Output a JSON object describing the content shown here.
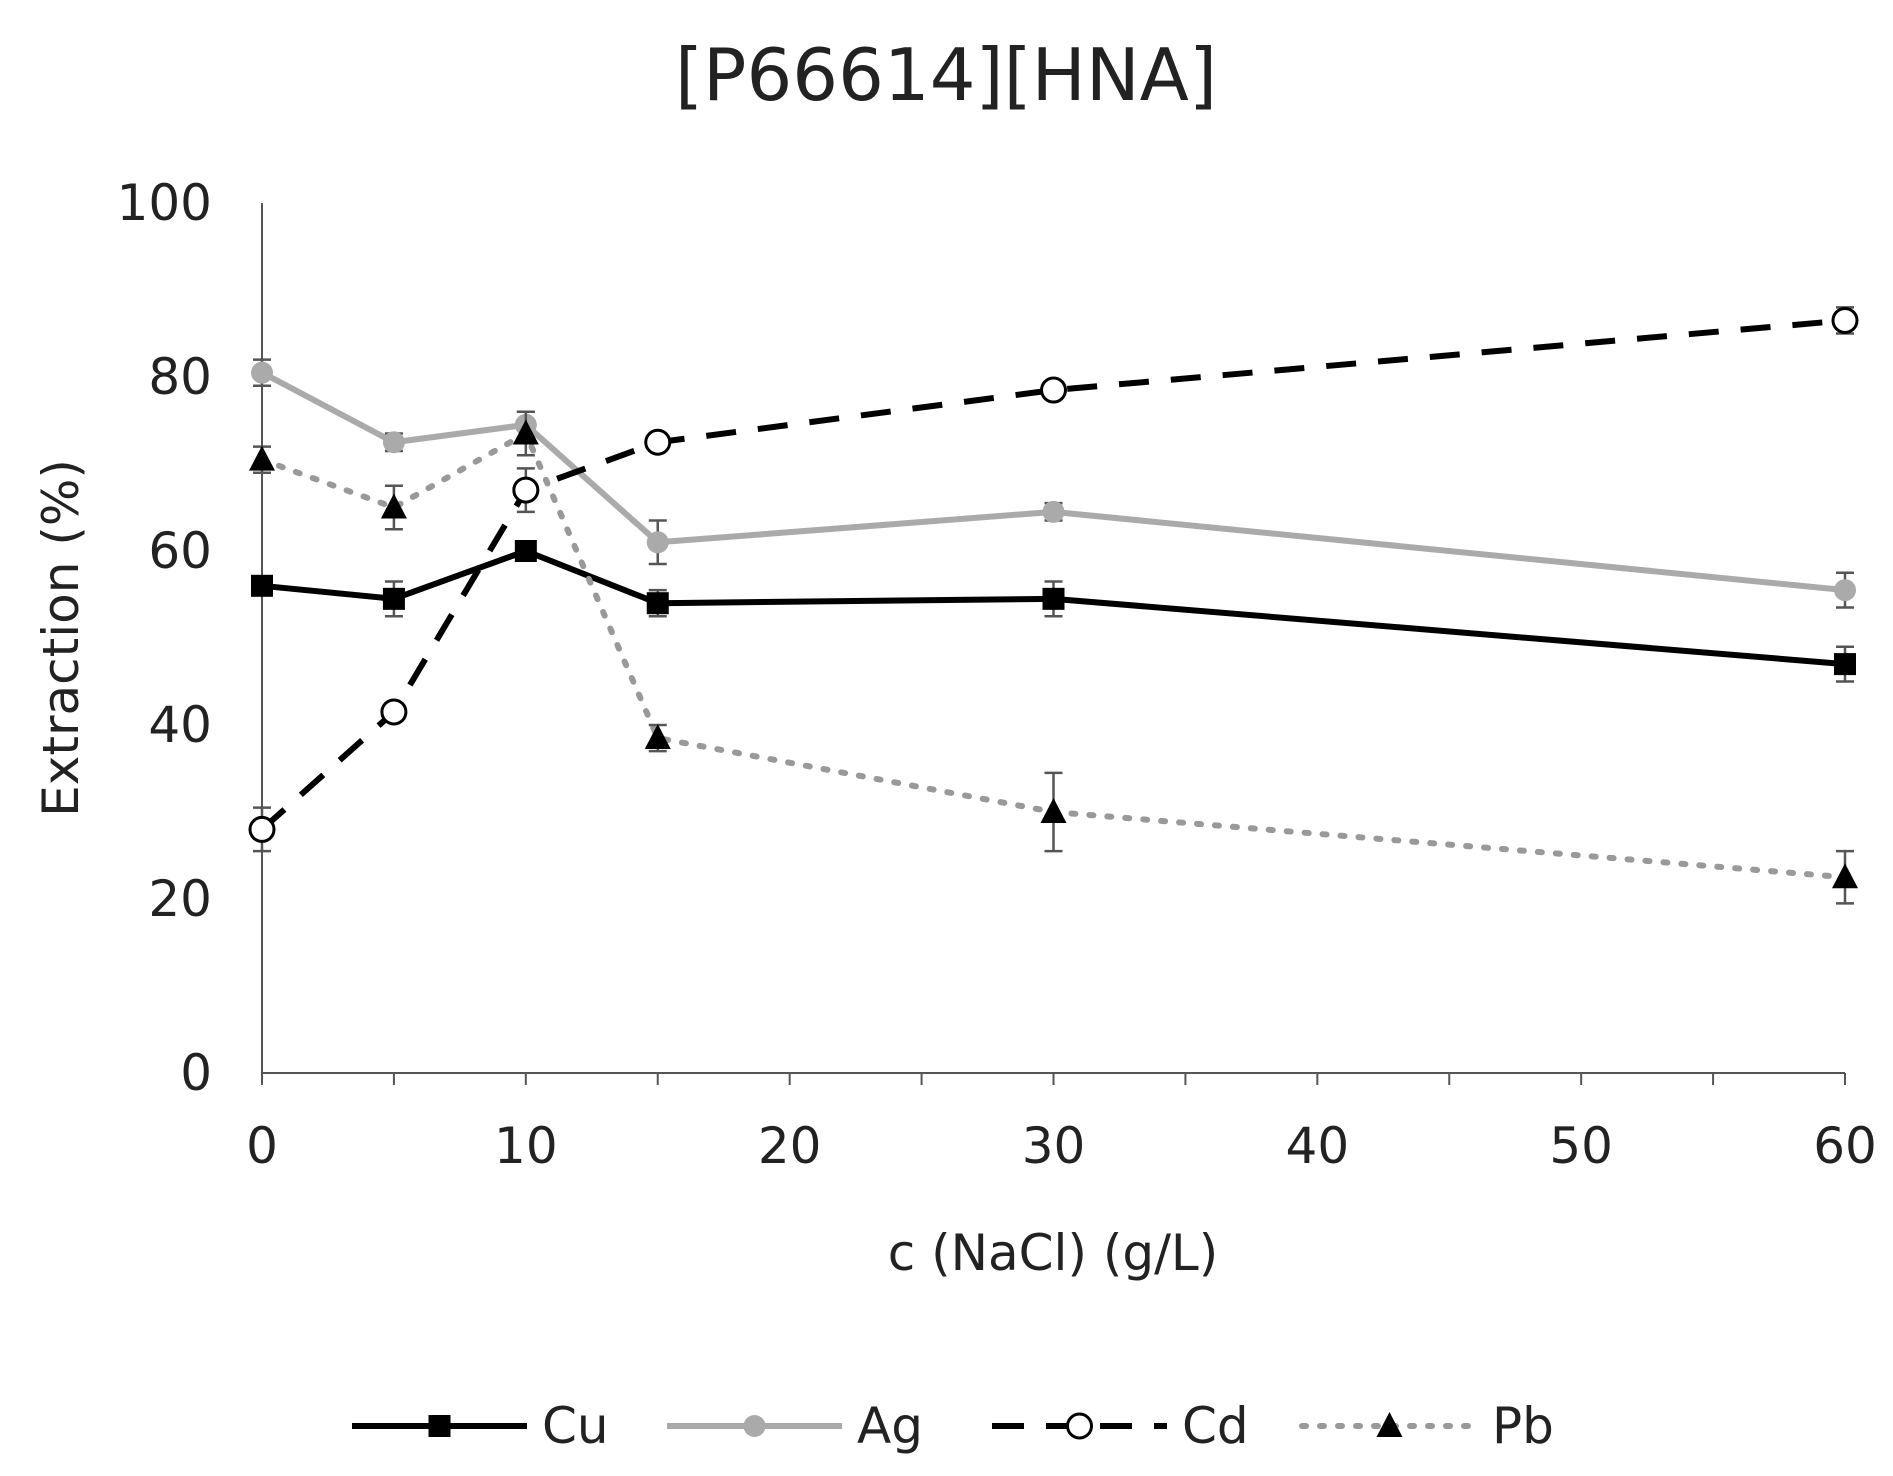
{
  "chart_data": {
    "type": "line",
    "title": "[P66614][HNA]",
    "xlabel": "c (NaCl) (g/L)",
    "ylabel": "Extraction (%)",
    "xlim": [
      0,
      60
    ],
    "ylim": [
      0,
      100
    ],
    "x_ticks": [
      0,
      10,
      20,
      30,
      40,
      50,
      60
    ],
    "y_ticks": [
      0,
      20,
      40,
      60,
      80,
      100
    ],
    "grid": false,
    "legend_position": "bottom",
    "x": [
      0,
      5,
      10,
      15,
      30,
      60
    ],
    "series": [
      {
        "name": "Cu",
        "color": "#000000",
        "dash": "solid",
        "marker": "square",
        "values": [
          56,
          54.5,
          60,
          54,
          54.5,
          47
        ],
        "errors": [
          1,
          2,
          1,
          1.5,
          2,
          2
        ]
      },
      {
        "name": "Ag",
        "color": "#aaaaaa",
        "dash": "solid",
        "marker": "circle",
        "values": [
          80.5,
          72.5,
          74.5,
          61,
          64.5,
          55.5
        ],
        "errors": [
          1.5,
          1,
          1.5,
          2.5,
          1,
          2
        ]
      },
      {
        "name": "Cd",
        "color": "#000000",
        "dash": "dashed",
        "marker": "open-circle",
        "values": [
          28,
          41.5,
          67,
          72.5,
          78.5,
          86.5
        ],
        "errors": [
          2.5,
          1,
          2.5,
          1,
          1,
          1.5
        ]
      },
      {
        "name": "Pb",
        "color": "#999999",
        "dash": "dotted",
        "marker": "triangle",
        "values": [
          70.5,
          65,
          73.5,
          38.5,
          30,
          22.5
        ],
        "errors": [
          1.5,
          2.5,
          2.5,
          1.5,
          4.5,
          3
        ]
      }
    ]
  }
}
